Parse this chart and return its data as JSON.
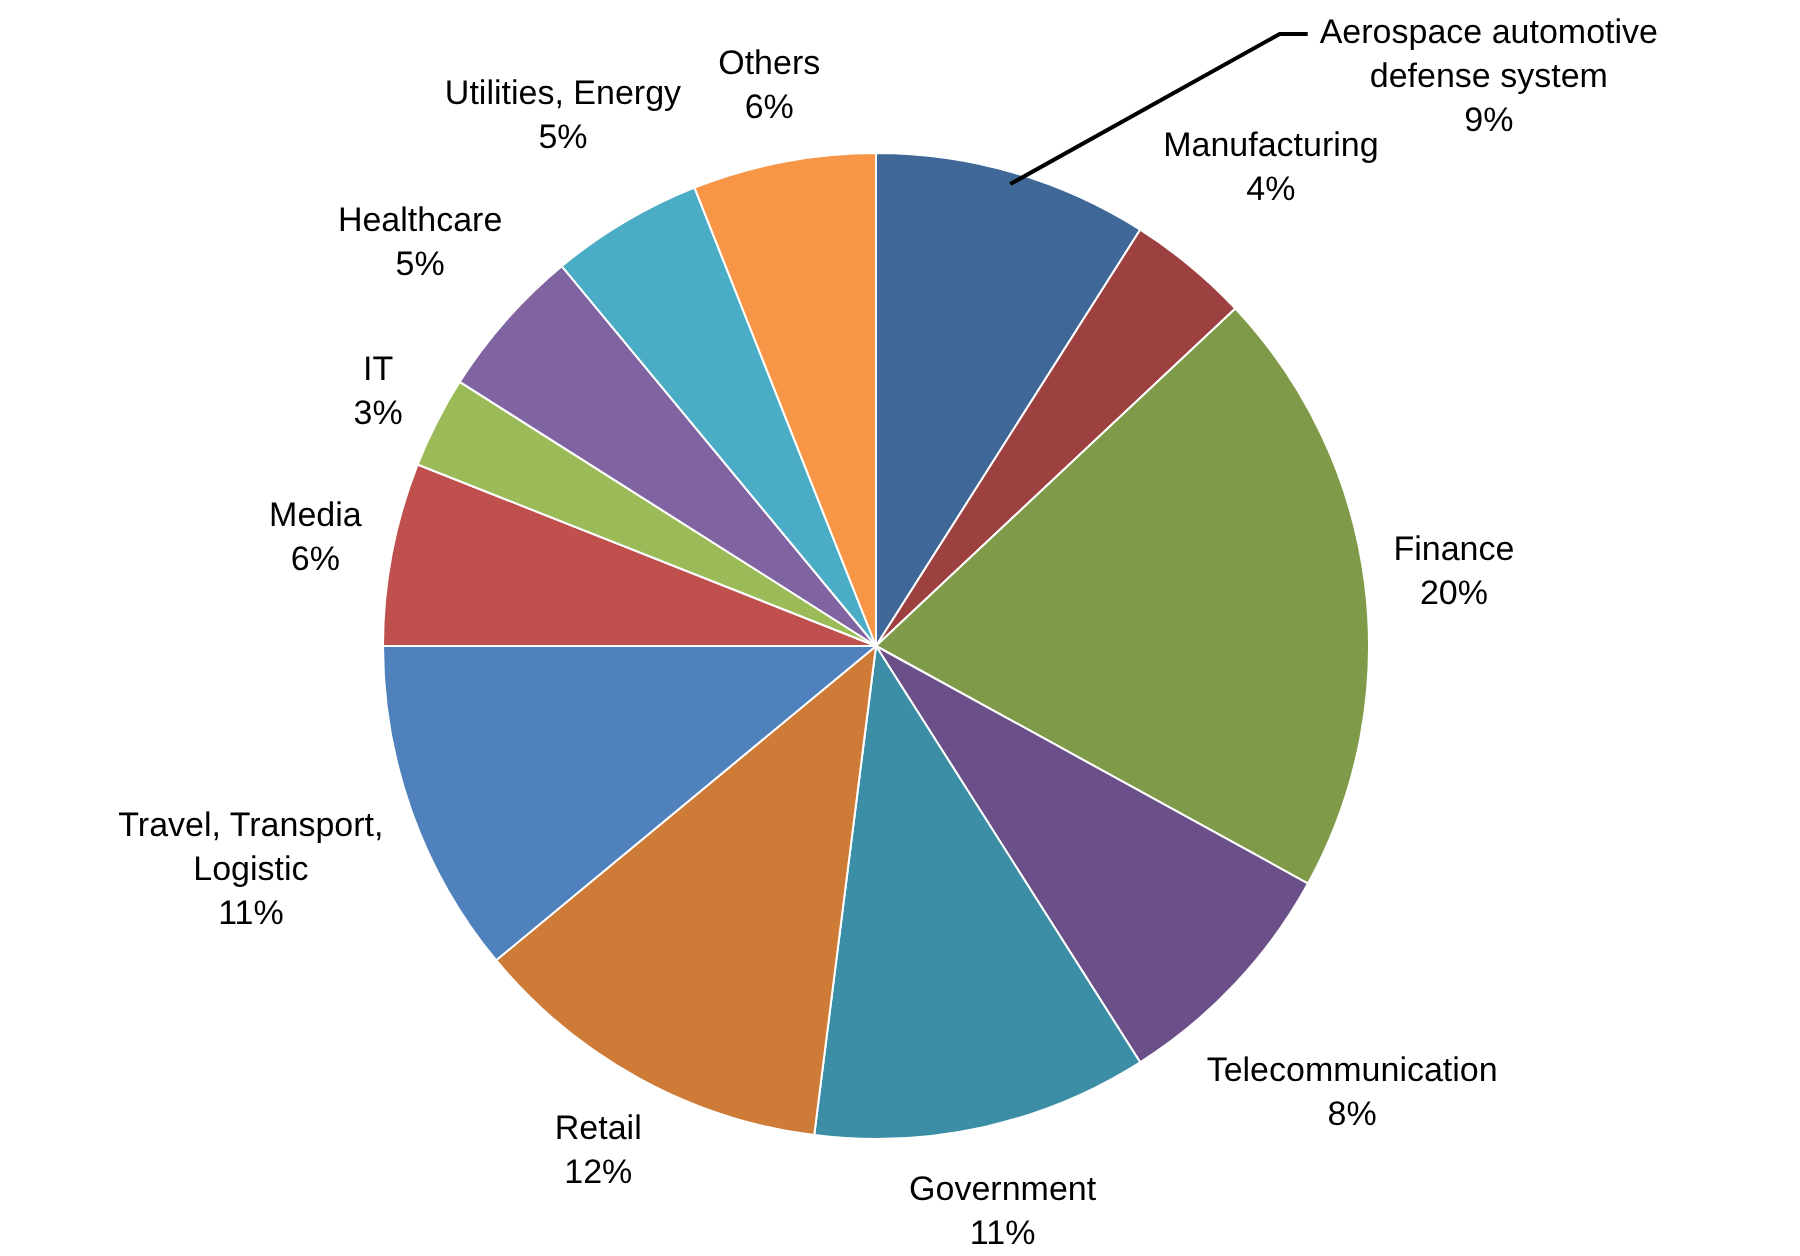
{
  "chart_data": {
    "type": "pie",
    "categories": [
      "Aerospace automotive defense system",
      "Manufacturing",
      "Finance",
      "Telecommunication",
      "Government",
      "Retail",
      "Travel, Transport, Logistic",
      "Media",
      "IT",
      "Healthcare",
      "Utilities, Energy",
      "Others"
    ],
    "values": [
      9,
      4,
      20,
      8,
      11,
      12,
      11,
      6,
      3,
      5,
      5,
      6
    ],
    "colors": [
      "#3f6797",
      "#9c413f",
      "#7f9a48",
      "#6a4f88",
      "#3b8ea5",
      "#cd7b37",
      "#4f81bd",
      "#c0504d",
      "#9bbb59",
      "#8064a2",
      "#4bacc6",
      "#f79646"
    ],
    "value_labels": [
      "9%",
      "4%",
      "20%",
      "8%",
      "11%",
      "12%",
      "11%",
      "6%",
      "3%",
      "5%",
      "5%",
      "6%"
    ],
    "legend": false
  }
}
